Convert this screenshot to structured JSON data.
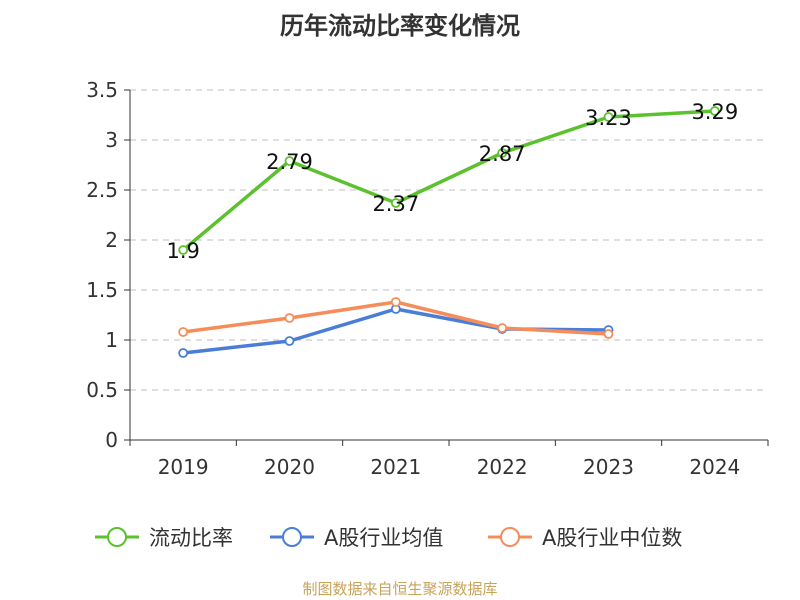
{
  "chart_data": {
    "type": "line",
    "title": "历年流动比率变化情况",
    "categories": [
      "2019",
      "2020",
      "2021",
      "2022",
      "2023",
      "2024"
    ],
    "ylim": [
      0,
      3.5
    ],
    "yticks": [
      "0",
      "0.5",
      "1",
      "1.5",
      "2",
      "2.5",
      "3",
      "3.5"
    ],
    "grid": true,
    "legend_position": "bottom",
    "series": [
      {
        "name": "流动比率",
        "color": "#5cc12e",
        "values": [
          1.9,
          2.79,
          2.37,
          2.87,
          3.23,
          3.29
        ],
        "labels": [
          "1.9",
          "2.79",
          "2.37",
          "2.87",
          "3.23",
          "3.29"
        ]
      },
      {
        "name": "A股行业均值",
        "color": "#4a7dd8",
        "values": [
          0.87,
          0.99,
          1.31,
          1.11,
          1.1,
          null
        ]
      },
      {
        "name": "A股行业中位数",
        "color": "#f58d5a",
        "values": [
          1.08,
          1.22,
          1.38,
          1.12,
          1.06,
          null
        ]
      }
    ]
  },
  "source": "制图数据来自恒生聚源数据库"
}
